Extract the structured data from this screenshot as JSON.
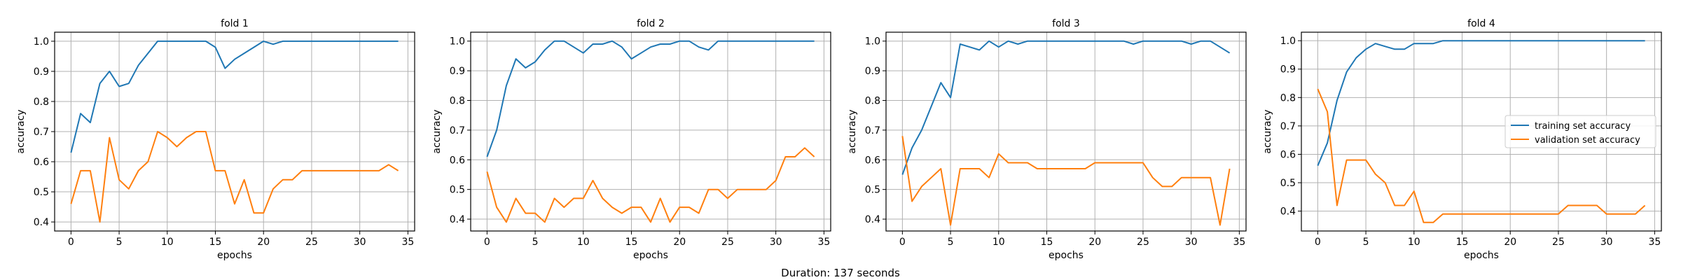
{
  "footer": {
    "text": "Duration: 137 seconds"
  },
  "legend": {
    "fold_index": 3,
    "placement": "center-right",
    "entries": [
      "training set accuracy",
      "validation set accuracy"
    ]
  },
  "colors": {
    "training": "#1f77b4",
    "validation": "#ff7f0e",
    "grid": "#b0b0b0"
  },
  "chart_data": [
    {
      "type": "line",
      "title": "fold 1",
      "xlabel": "epochs",
      "ylabel": "accuracy",
      "xlim": [
        -1.7,
        35.7
      ],
      "ylim": [
        0.37,
        1.03
      ],
      "xticks": [
        0,
        5,
        10,
        15,
        20,
        25,
        30,
        35
      ],
      "yticks": [
        0.4,
        0.5,
        0.6,
        0.7,
        0.8,
        0.9,
        1.0
      ],
      "ytick_labels": [
        "0.4",
        "0.5",
        "0.6",
        "0.7",
        "0.8",
        "0.9",
        "1.0"
      ],
      "grid": true,
      "x": [
        0,
        1,
        2,
        3,
        4,
        5,
        6,
        7,
        8,
        9,
        10,
        11,
        12,
        13,
        14,
        15,
        16,
        17,
        18,
        19,
        20,
        21,
        22,
        23,
        24,
        25,
        26,
        27,
        28,
        29,
        30,
        31,
        32,
        33,
        34
      ],
      "series": [
        {
          "name": "training set accuracy",
          "values": [
            0.63,
            0.76,
            0.73,
            0.86,
            0.9,
            0.85,
            0.86,
            0.92,
            0.96,
            1.0,
            1.0,
            1.0,
            1.0,
            1.0,
            1.0,
            0.98,
            0.91,
            0.94,
            0.96,
            0.98,
            1.0,
            0.99,
            1.0,
            1.0,
            1.0,
            1.0,
            1.0,
            1.0,
            1.0,
            1.0,
            1.0,
            1.0,
            1.0,
            1.0,
            1.0
          ]
        },
        {
          "name": "validation set accuracy",
          "values": [
            0.46,
            0.57,
            0.57,
            0.4,
            0.68,
            0.54,
            0.51,
            0.57,
            0.6,
            0.7,
            0.68,
            0.65,
            0.68,
            0.7,
            0.7,
            0.57,
            0.57,
            0.46,
            0.54,
            0.43,
            0.43,
            0.51,
            0.54,
            0.54,
            0.57,
            0.57,
            0.57,
            0.57,
            0.57,
            0.57,
            0.57,
            0.57,
            0.57,
            0.59,
            0.57
          ]
        }
      ]
    },
    {
      "type": "line",
      "title": "fold 2",
      "xlabel": "epochs",
      "ylabel": "accuracy",
      "xlim": [
        -1.7,
        35.7
      ],
      "ylim": [
        0.36,
        1.03
      ],
      "xticks": [
        0,
        5,
        10,
        15,
        20,
        25,
        30,
        35
      ],
      "yticks": [
        0.4,
        0.5,
        0.6,
        0.7,
        0.8,
        0.9,
        1.0
      ],
      "ytick_labels": [
        "0.4",
        "0.5",
        "0.6",
        "0.7",
        "0.8",
        "0.9",
        "1.0"
      ],
      "grid": true,
      "x": [
        0,
        1,
        2,
        3,
        4,
        5,
        6,
        7,
        8,
        9,
        10,
        11,
        12,
        13,
        14,
        15,
        16,
        17,
        18,
        19,
        20,
        21,
        22,
        23,
        24,
        25,
        26,
        27,
        28,
        29,
        30,
        31,
        32,
        33,
        34
      ],
      "series": [
        {
          "name": "training set accuracy",
          "values": [
            0.61,
            0.7,
            0.85,
            0.94,
            0.91,
            0.93,
            0.97,
            1.0,
            1.0,
            0.98,
            0.96,
            0.99,
            0.99,
            1.0,
            0.98,
            0.94,
            0.96,
            0.98,
            0.99,
            0.99,
            1.0,
            1.0,
            0.98,
            0.97,
            1.0,
            1.0,
            1.0,
            1.0,
            1.0,
            1.0,
            1.0,
            1.0,
            1.0,
            1.0,
            1.0
          ]
        },
        {
          "name": "validation set accuracy",
          "values": [
            0.56,
            0.44,
            0.39,
            0.47,
            0.42,
            0.42,
            0.39,
            0.47,
            0.44,
            0.47,
            0.47,
            0.53,
            0.47,
            0.44,
            0.42,
            0.44,
            0.44,
            0.39,
            0.47,
            0.39,
            0.44,
            0.44,
            0.42,
            0.5,
            0.5,
            0.47,
            0.5,
            0.5,
            0.5,
            0.5,
            0.53,
            0.61,
            0.61,
            0.64,
            0.61
          ]
        }
      ]
    },
    {
      "type": "line",
      "title": "fold 3",
      "xlabel": "epochs",
      "ylabel": "accuracy",
      "xlim": [
        -1.7,
        35.7
      ],
      "ylim": [
        0.36,
        1.03
      ],
      "xticks": [
        0,
        5,
        10,
        15,
        20,
        25,
        30,
        35
      ],
      "yticks": [
        0.4,
        0.5,
        0.6,
        0.7,
        0.8,
        0.9,
        1.0
      ],
      "ytick_labels": [
        "0.4",
        "0.5",
        "0.6",
        "0.7",
        "0.8",
        "0.9",
        "1.0"
      ],
      "grid": true,
      "x": [
        0,
        1,
        2,
        3,
        4,
        5,
        6,
        7,
        8,
        9,
        10,
        11,
        12,
        13,
        14,
        15,
        16,
        17,
        18,
        19,
        20,
        21,
        22,
        23,
        24,
        25,
        26,
        27,
        28,
        29,
        30,
        31,
        32,
        33,
        34
      ],
      "series": [
        {
          "name": "training set accuracy",
          "values": [
            0.55,
            0.64,
            0.7,
            0.78,
            0.86,
            0.81,
            0.99,
            0.98,
            0.97,
            1.0,
            0.98,
            1.0,
            0.99,
            1.0,
            1.0,
            1.0,
            1.0,
            1.0,
            1.0,
            1.0,
            1.0,
            1.0,
            1.0,
            1.0,
            0.99,
            1.0,
            1.0,
            1.0,
            1.0,
            1.0,
            0.99,
            1.0,
            1.0,
            0.98,
            0.96
          ]
        },
        {
          "name": "validation set accuracy",
          "values": [
            0.68,
            0.46,
            0.51,
            0.54,
            0.57,
            0.38,
            0.57,
            0.57,
            0.57,
            0.54,
            0.62,
            0.59,
            0.59,
            0.59,
            0.57,
            0.57,
            0.57,
            0.57,
            0.57,
            0.57,
            0.59,
            0.59,
            0.59,
            0.59,
            0.59,
            0.59,
            0.54,
            0.51,
            0.51,
            0.54,
            0.54,
            0.54,
            0.54,
            0.38,
            0.57
          ]
        }
      ]
    },
    {
      "type": "line",
      "title": "fold 4",
      "xlabel": "epochs",
      "ylabel": "accuracy",
      "xlim": [
        -1.7,
        35.7
      ],
      "ylim": [
        0.33,
        1.03
      ],
      "xticks": [
        0,
        5,
        10,
        15,
        20,
        25,
        30,
        35
      ],
      "yticks": [
        0.4,
        0.5,
        0.6,
        0.7,
        0.8,
        0.9,
        1.0
      ],
      "ytick_labels": [
        "0.4",
        "0.5",
        "0.6",
        "0.7",
        "0.8",
        "0.9",
        "1.0"
      ],
      "grid": true,
      "x": [
        0,
        1,
        2,
        3,
        4,
        5,
        6,
        7,
        8,
        9,
        10,
        11,
        12,
        13,
        14,
        15,
        16,
        17,
        18,
        19,
        20,
        21,
        22,
        23,
        24,
        25,
        26,
        27,
        28,
        29,
        30,
        31,
        32,
        33,
        34
      ],
      "series": [
        {
          "name": "training set accuracy",
          "values": [
            0.56,
            0.64,
            0.79,
            0.89,
            0.94,
            0.97,
            0.99,
            0.98,
            0.97,
            0.97,
            0.99,
            0.99,
            0.99,
            1.0,
            1.0,
            1.0,
            1.0,
            1.0,
            1.0,
            1.0,
            1.0,
            1.0,
            1.0,
            1.0,
            1.0,
            1.0,
            1.0,
            1.0,
            1.0,
            1.0,
            1.0,
            1.0,
            1.0,
            1.0,
            1.0
          ]
        },
        {
          "name": "validation set accuracy",
          "values": [
            0.83,
            0.75,
            0.42,
            0.58,
            0.58,
            0.58,
            0.53,
            0.5,
            0.42,
            0.42,
            0.47,
            0.36,
            0.36,
            0.39,
            0.39,
            0.39,
            0.39,
            0.39,
            0.39,
            0.39,
            0.39,
            0.39,
            0.39,
            0.39,
            0.39,
            0.39,
            0.42,
            0.42,
            0.42,
            0.42,
            0.39,
            0.39,
            0.39,
            0.39,
            0.42
          ]
        }
      ]
    }
  ]
}
